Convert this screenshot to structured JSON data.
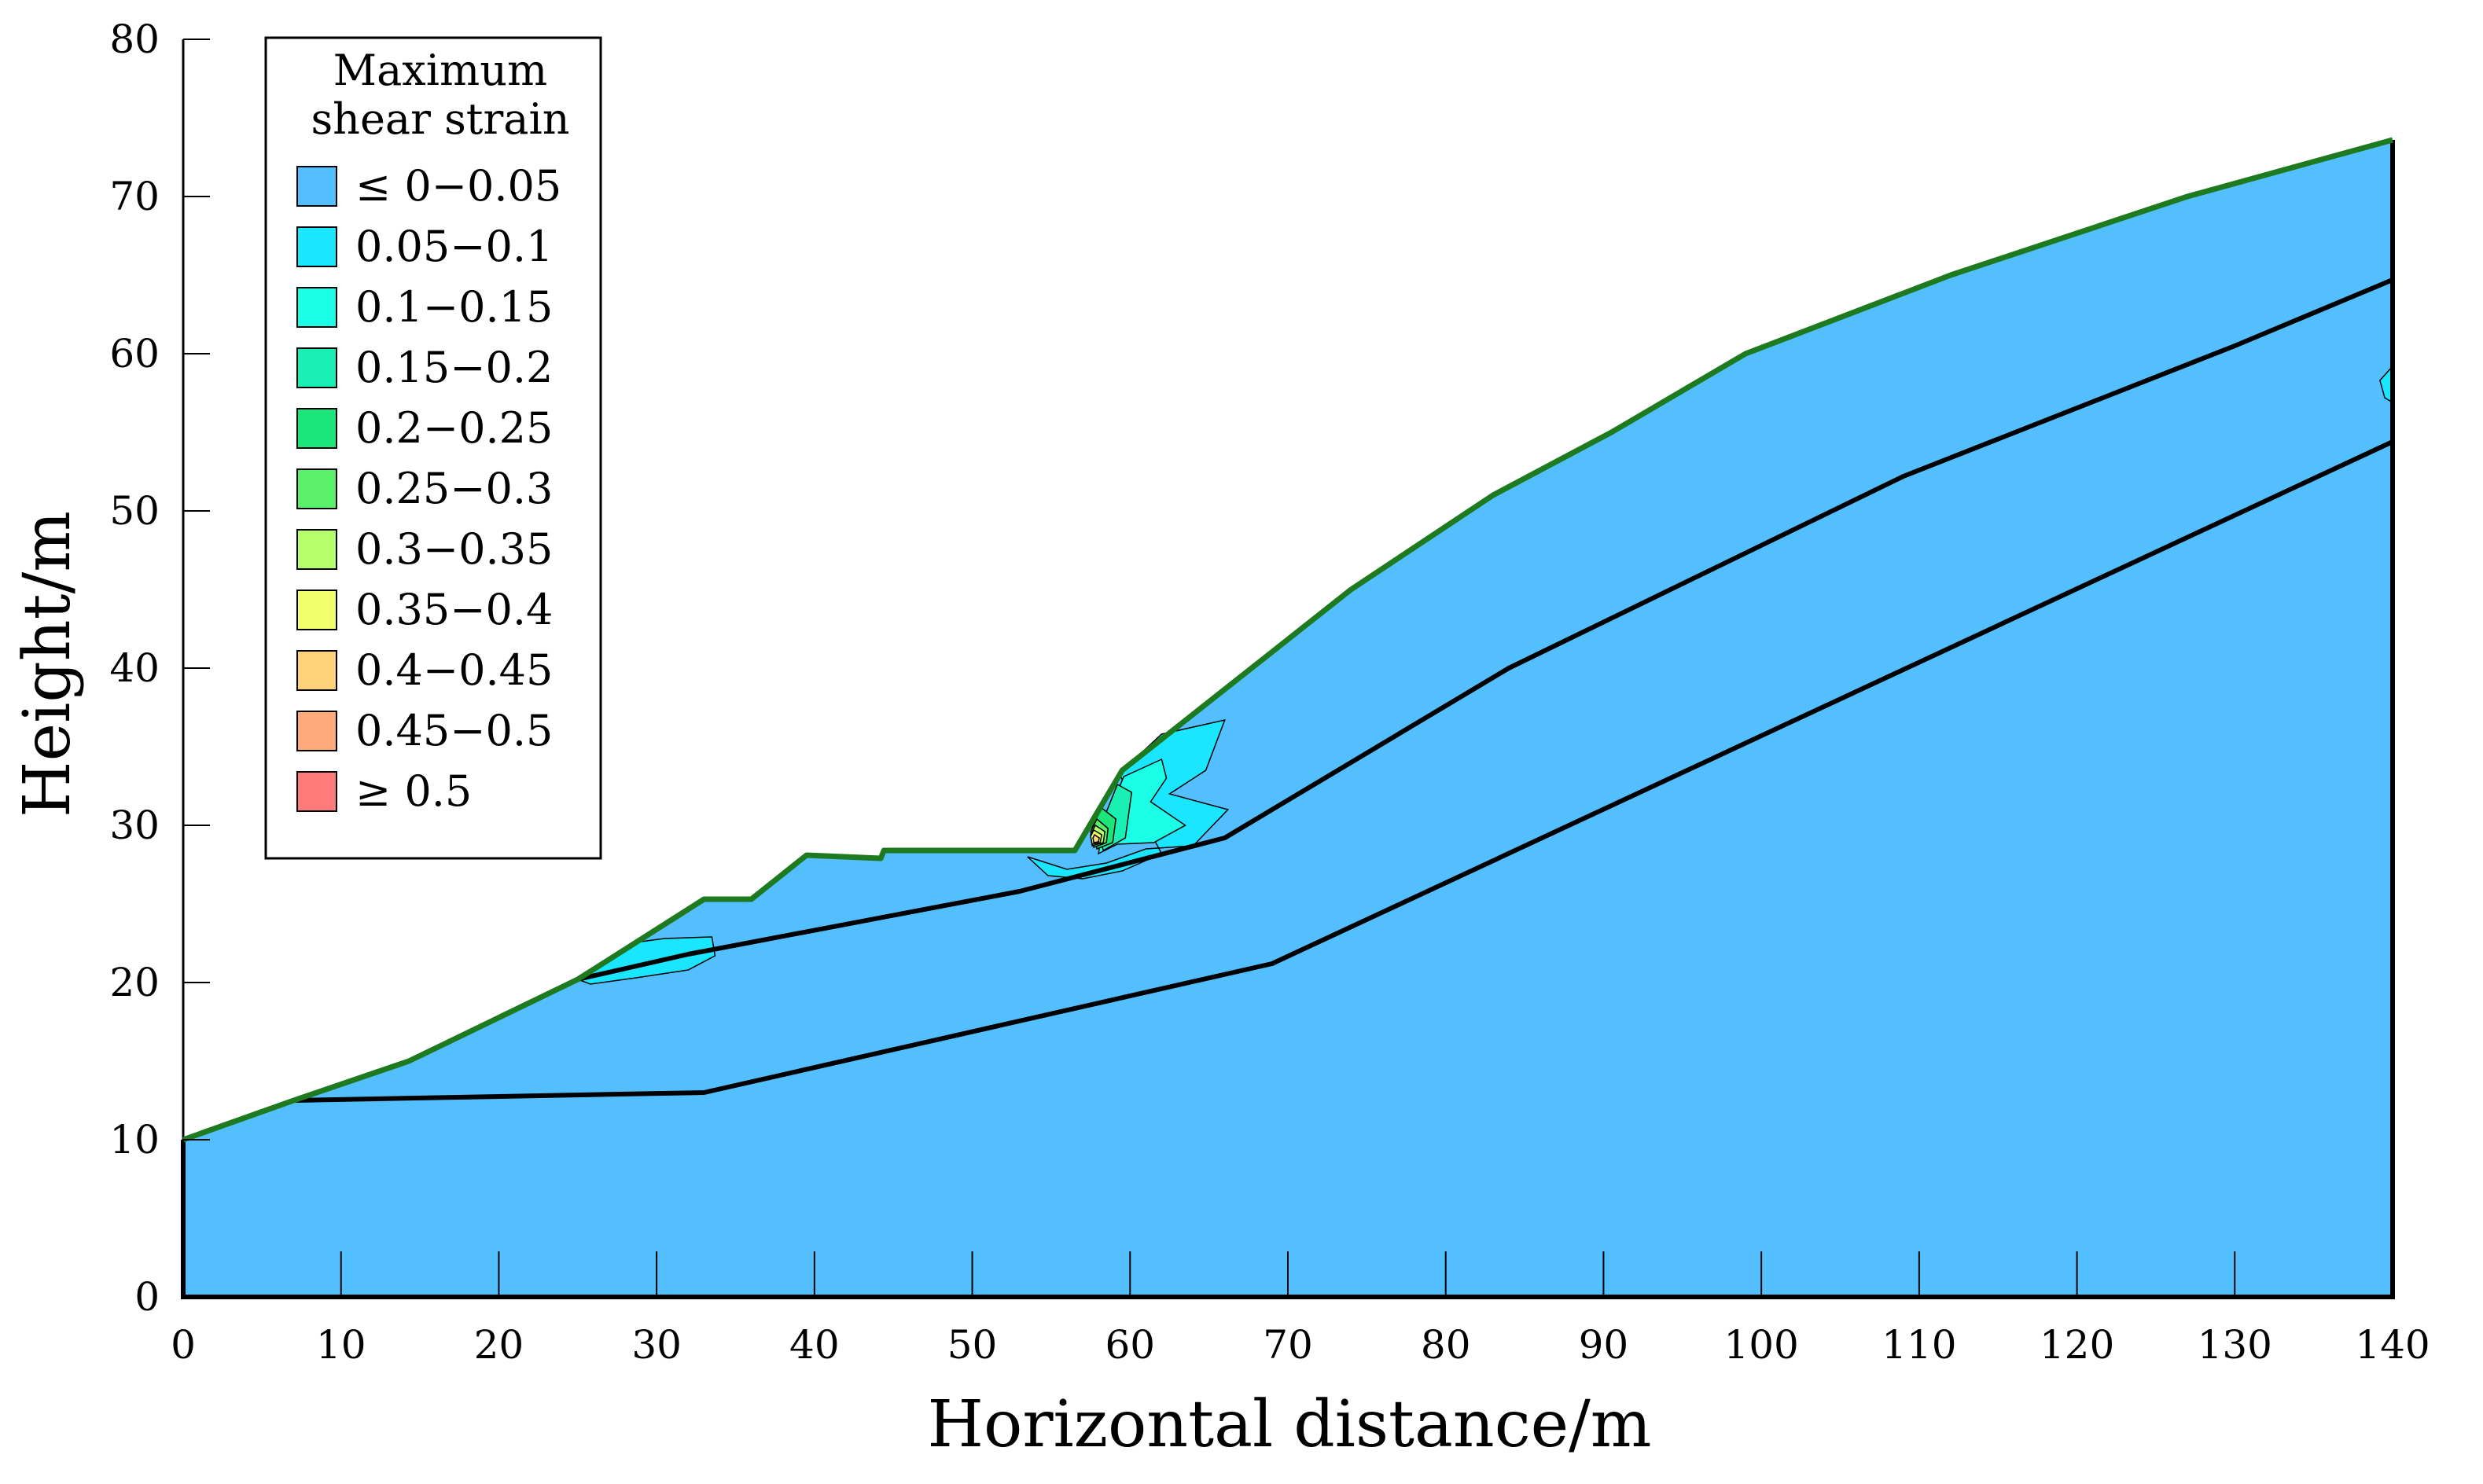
{
  "chart_data": {
    "type": "area",
    "xlabel": "Horizontal distance/m",
    "ylabel": "Height/m",
    "xlim": [
      0,
      140
    ],
    "ylim": [
      0,
      80
    ],
    "xticks": [
      0,
      10,
      20,
      30,
      40,
      50,
      60,
      70,
      80,
      90,
      100,
      110,
      120,
      130,
      140
    ],
    "yticks": [
      0,
      10,
      20,
      30,
      40,
      50,
      60,
      70,
      80
    ],
    "grid": false,
    "legend": {
      "title": "Maximum shear strain",
      "title_lines": [
        "Maximum",
        "shear strain"
      ],
      "position": "top-left",
      "entries": [
        {
          "label": "≤ 0−0.05",
          "color": "#54BFFF"
        },
        {
          "label": "0.05−0.1",
          "color": "#1AE6FF"
        },
        {
          "label": "0.1−0.15",
          "color": "#1AFFE6"
        },
        {
          "label": "0.15−0.2",
          "color": "#1AF0B4"
        },
        {
          "label": "0.2−0.25",
          "color": "#1AE67A"
        },
        {
          "label": "0.25−0.3",
          "color": "#5AF06A"
        },
        {
          "label": "0.3−0.35",
          "color": "#B4FF6A"
        },
        {
          "label": "0.35−0.4",
          "color": "#F0FF6A"
        },
        {
          "label": "0.4−0.45",
          "color": "#FFD27A"
        },
        {
          "label": "0.45−0.5",
          "color": "#FFAA7A"
        },
        {
          "label": "≥ 0.5",
          "color": "#FF7A7A"
        }
      ]
    },
    "ground_surface": {
      "color": "#1E7A1E",
      "points": [
        [
          0,
          10
        ],
        [
          7,
          12.5
        ],
        [
          14.3,
          15
        ],
        [
          25,
          20.2
        ],
        [
          33,
          25.3
        ],
        [
          36,
          25.3
        ],
        [
          39.5,
          28.1
        ],
        [
          44.2,
          27.9
        ],
        [
          44.4,
          28.4
        ],
        [
          56.5,
          28.4
        ],
        [
          59.5,
          33.5
        ],
        [
          74,
          45
        ],
        [
          83,
          51
        ],
        [
          90.5,
          55
        ],
        [
          99,
          60
        ],
        [
          112,
          65
        ],
        [
          127,
          70
        ],
        [
          140,
          73.6
        ]
      ]
    },
    "layer_boundaries": [
      {
        "name": "",
        "points": [
          [
            7,
            12.5
          ],
          [
            33,
            13
          ],
          [
            69,
            21.2
          ],
          [
            140,
            54.4
          ]
        ]
      },
      {
        "name": "",
        "points": [
          [
            25,
            20.2
          ],
          [
            32,
            21.8
          ],
          [
            53,
            25.8
          ],
          [
            66,
            29.2
          ],
          [
            84,
            40
          ],
          [
            109,
            52.2
          ],
          [
            130,
            60.5
          ],
          [
            140,
            64.7
          ]
        ]
      }
    ],
    "strain_zones": [
      {
        "level": "0.05−0.1",
        "points": [
          [
            59.3,
            33.3
          ],
          [
            62,
            35.8
          ],
          [
            66,
            36.7
          ],
          [
            64.8,
            33.5
          ],
          [
            62.5,
            32
          ],
          [
            66.2,
            31
          ],
          [
            64,
            28.7
          ],
          [
            61,
            28.5
          ],
          [
            58.5,
            27.6
          ],
          [
            56,
            27.2
          ],
          [
            53.5,
            28
          ],
          [
            54.8,
            26.8
          ],
          [
            57,
            26.6
          ],
          [
            59.5,
            27.1
          ],
          [
            62,
            28.2
          ]
        ]
      },
      {
        "level": "0.1−0.15",
        "points": [
          [
            59.6,
            33.1
          ],
          [
            62,
            34.2
          ],
          [
            62.3,
            33
          ],
          [
            61.3,
            31.5
          ],
          [
            63.5,
            30
          ],
          [
            61.5,
            28.9
          ],
          [
            59.2,
            28.8
          ],
          [
            58,
            28.2
          ],
          [
            58.3,
            30
          ]
        ]
      },
      {
        "level": "0.15−0.2",
        "points": [
          [
            59.2,
            32.6
          ],
          [
            60.1,
            32.1
          ],
          [
            59.7,
            29.2
          ],
          [
            58.3,
            28.4
          ],
          [
            58,
            29.6
          ]
        ]
      },
      {
        "level": "0.2−0.25",
        "points": [
          [
            58.2,
            31.1
          ],
          [
            59.1,
            30.4
          ],
          [
            58.9,
            28.9
          ],
          [
            57.9,
            28.5
          ],
          [
            57.6,
            29.9
          ]
        ]
      },
      {
        "level": "0.25−0.3",
        "points": [
          [
            57.9,
            30.4
          ],
          [
            58.6,
            29.8
          ],
          [
            58.5,
            28.9
          ],
          [
            57.7,
            28.6
          ],
          [
            57.5,
            29.6
          ]
        ]
      },
      {
        "level": "0.3−0.35",
        "points": [
          [
            57.8,
            30
          ],
          [
            58.4,
            29.6
          ],
          [
            58.3,
            28.9
          ],
          [
            57.6,
            28.7
          ],
          [
            57.5,
            29.4
          ]
        ]
      },
      {
        "level": "0.35−0.4",
        "points": [
          [
            57.7,
            29.7
          ],
          [
            58.2,
            29.4
          ],
          [
            58.1,
            28.9
          ],
          [
            57.6,
            28.8
          ],
          [
            57.5,
            29.3
          ]
        ]
      },
      {
        "level": "0.4−0.45",
        "points": [
          [
            57.75,
            29.4
          ],
          [
            58.05,
            29.2
          ],
          [
            58,
            28.95
          ],
          [
            57.7,
            28.9
          ],
          [
            57.65,
            29.2
          ]
        ]
      },
      {
        "level": "0.05−0.1",
        "points": [
          [
            25,
            20.2
          ],
          [
            29,
            22.6
          ],
          [
            30.5,
            22.8
          ],
          [
            33.5,
            22.9
          ],
          [
            33.7,
            21.7
          ],
          [
            32,
            20.8
          ],
          [
            28.7,
            20.3
          ],
          [
            25.8,
            19.9
          ]
        ]
      },
      {
        "level": "0.05−0.1",
        "points": [
          [
            140,
            59.2
          ],
          [
            139.2,
            58.3
          ],
          [
            139.5,
            57.2
          ],
          [
            140,
            56.9
          ]
        ]
      }
    ]
  }
}
